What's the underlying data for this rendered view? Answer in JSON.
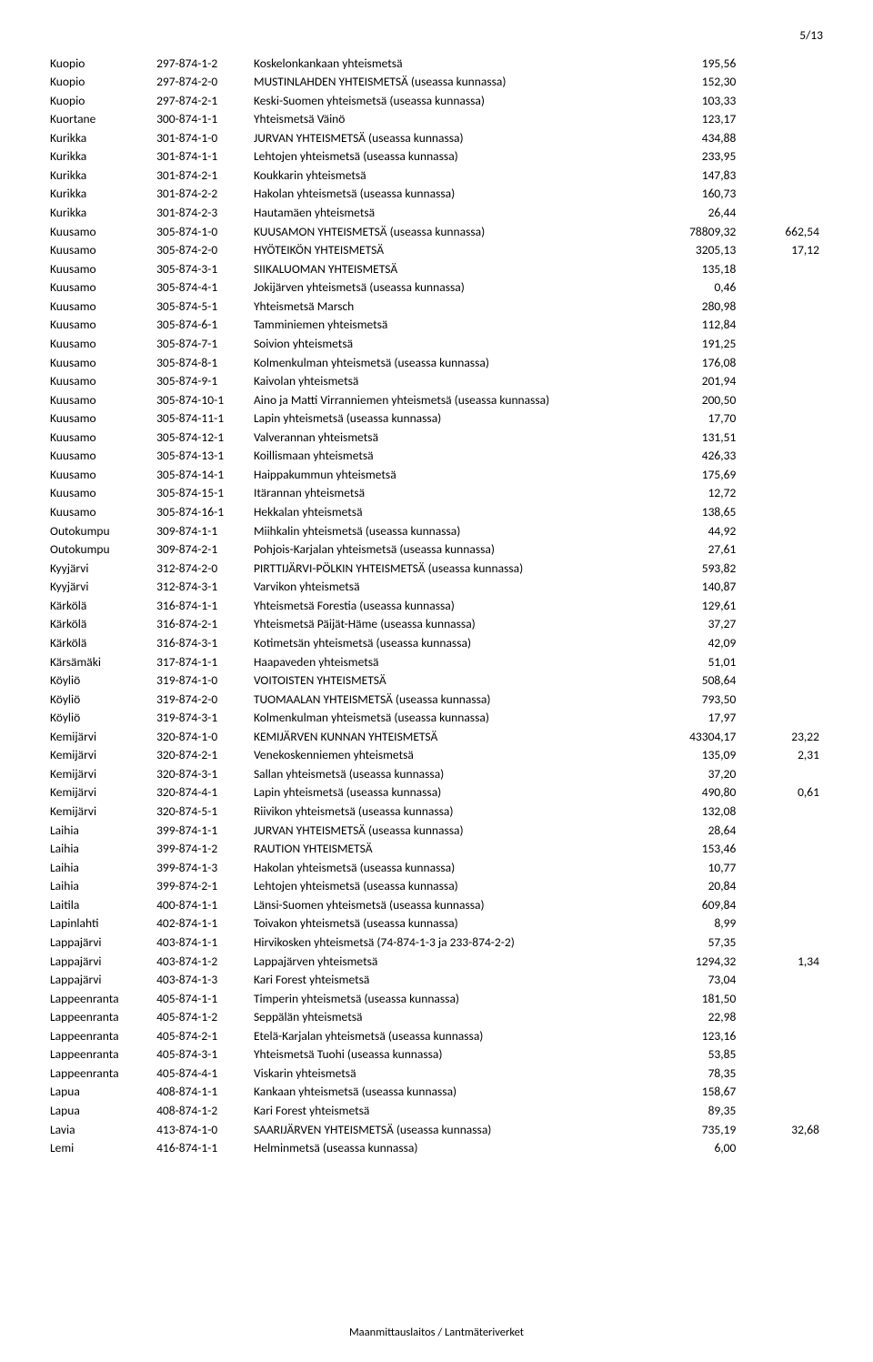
{
  "page_number": "5/13",
  "footer": "Maanmittauslaitos / Lantmäteriverket",
  "rows": [
    [
      "Kuopio",
      "297-874-1-2",
      "Koskelonkankaan yhteismetsä",
      "195,56",
      ""
    ],
    [
      "Kuopio",
      "297-874-2-0",
      "MUSTINLAHDEN YHTEISMETSÄ (useassa kunnassa)",
      "152,30",
      ""
    ],
    [
      "Kuopio",
      "297-874-2-1",
      "Keski-Suomen yhteismetsä (useassa kunnassa)",
      "103,33",
      ""
    ],
    [
      "Kuortane",
      "300-874-1-1",
      "Yhteismetsä Väinö",
      "123,17",
      ""
    ],
    [
      "Kurikka",
      "301-874-1-0",
      "JURVAN YHTEISMETSÄ (useassa kunnassa)",
      "434,88",
      ""
    ],
    [
      "Kurikka",
      "301-874-1-1",
      "Lehtojen yhteismetsä (useassa kunnassa)",
      "233,95",
      ""
    ],
    [
      "Kurikka",
      "301-874-2-1",
      "Koukkarin yhteismetsä",
      "147,83",
      ""
    ],
    [
      "Kurikka",
      "301-874-2-2",
      "Hakolan yhteismetsä (useassa kunnassa)",
      "160,73",
      ""
    ],
    [
      "Kurikka",
      "301-874-2-3",
      "Hautamäen yhteismetsä",
      "26,44",
      ""
    ],
    [
      "Kuusamo",
      "305-874-1-0",
      "KUUSAMON YHTEISMETSÄ (useassa kunnassa)",
      "78809,32",
      "662,54"
    ],
    [
      "Kuusamo",
      "305-874-2-0",
      "HYÖTEIKÖN YHTEISMETSÄ",
      "3205,13",
      "17,12"
    ],
    [
      "Kuusamo",
      "305-874-3-1",
      "SIIKALUOMAN YHTEISMETSÄ",
      "135,18",
      ""
    ],
    [
      "Kuusamo",
      "305-874-4-1",
      "Jokijärven yhteismetsä (useassa kunnassa)",
      "0,46",
      ""
    ],
    [
      "Kuusamo",
      "305-874-5-1",
      "Yhteismetsä Marsch",
      "280,98",
      ""
    ],
    [
      "Kuusamo",
      "305-874-6-1",
      "Tamminiemen yhteismetsä",
      "112,84",
      ""
    ],
    [
      "Kuusamo",
      "305-874-7-1",
      "Soivion yhteismetsä",
      "191,25",
      ""
    ],
    [
      "Kuusamo",
      "305-874-8-1",
      "Kolmenkulman yhteismetsä (useassa kunnassa)",
      "176,08",
      ""
    ],
    [
      "Kuusamo",
      "305-874-9-1",
      "Kaivolan yhteismetsä",
      "201,94",
      ""
    ],
    [
      "Kuusamo",
      "305-874-10-1",
      "Aino ja Matti Virranniemen yhteismetsä (useassa kunnassa)",
      "200,50",
      ""
    ],
    [
      "Kuusamo",
      "305-874-11-1",
      "Lapin yhteismetsä (useassa kunnassa)",
      "17,70",
      ""
    ],
    [
      "Kuusamo",
      "305-874-12-1",
      "Valverannan yhteismetsä",
      "131,51",
      ""
    ],
    [
      "Kuusamo",
      "305-874-13-1",
      "Koillismaan yhteismetsä",
      "426,33",
      ""
    ],
    [
      "Kuusamo",
      "305-874-14-1",
      "Haippakummun yhteismetsä",
      "175,69",
      ""
    ],
    [
      "Kuusamo",
      "305-874-15-1",
      "Itärannan yhteismetsä",
      "12,72",
      ""
    ],
    [
      "Kuusamo",
      "305-874-16-1",
      "Hekkalan yhteismetsä",
      "138,65",
      ""
    ],
    [
      "Outokumpu",
      "309-874-1-1",
      "Miihkalin yhteismetsä (useassa kunnassa)",
      "44,92",
      ""
    ],
    [
      "Outokumpu",
      "309-874-2-1",
      "Pohjois-Karjalan yhteismetsä (useassa kunnassa)",
      "27,61",
      ""
    ],
    [
      "Kyyjärvi",
      "312-874-2-0",
      "PIRTTIJÄRVI-PÖLKIN YHTEISMETSÄ (useassa kunnassa)",
      "593,82",
      ""
    ],
    [
      "Kyyjärvi",
      "312-874-3-1",
      "Varvikon yhteismetsä",
      "140,87",
      ""
    ],
    [
      "Kärkölä",
      "316-874-1-1",
      "Yhteismetsä Forestia (useassa kunnassa)",
      "129,61",
      ""
    ],
    [
      "Kärkölä",
      "316-874-2-1",
      "Yhteismetsä Päijät-Häme (useassa kunnassa)",
      "37,27",
      ""
    ],
    [
      "Kärkölä",
      "316-874-3-1",
      "Kotimetsän yhteismetsä (useassa kunnassa)",
      "42,09",
      ""
    ],
    [
      "Kärsämäki",
      "317-874-1-1",
      "Haapaveden yhteismetsä",
      "51,01",
      ""
    ],
    [
      "Köyliö",
      "319-874-1-0",
      "VOITOISTEN YHTEISMETSÄ",
      "508,64",
      ""
    ],
    [
      "Köyliö",
      "319-874-2-0",
      "TUOMAALAN YHTEISMETSÄ (useassa kunnassa)",
      "793,50",
      ""
    ],
    [
      "Köyliö",
      "319-874-3-1",
      "Kolmenkulman yhteismetsä (useassa kunnassa)",
      "17,97",
      ""
    ],
    [
      "Kemijärvi",
      "320-874-1-0",
      "KEMIJÄRVEN KUNNAN YHTEISMETSÄ",
      "43304,17",
      "23,22"
    ],
    [
      "Kemijärvi",
      "320-874-2-1",
      "Venekoskenniemen yhteismetsä",
      "135,09",
      "2,31"
    ],
    [
      "Kemijärvi",
      "320-874-3-1",
      "Sallan yhteismetsä (useassa kunnassa)",
      "37,20",
      ""
    ],
    [
      "Kemijärvi",
      "320-874-4-1",
      "Lapin yhteismetsä (useassa kunnassa)",
      "490,80",
      "0,61"
    ],
    [
      "Kemijärvi",
      "320-874-5-1",
      "Riivikon yhteismetsä (useassa kunnassa)",
      "132,08",
      ""
    ],
    [
      "Laihia",
      "399-874-1-1",
      "JURVAN YHTEISMETSÄ (useassa kunnassa)",
      "28,64",
      ""
    ],
    [
      "Laihia",
      "399-874-1-2",
      "RAUTION YHTEISMETSÄ",
      "153,46",
      ""
    ],
    [
      "Laihia",
      "399-874-1-3",
      "Hakolan yhteismetsä (useassa kunnassa)",
      "10,77",
      ""
    ],
    [
      "Laihia",
      "399-874-2-1",
      "Lehtojen yhteismetsä (useassa kunnassa)",
      "20,84",
      ""
    ],
    [
      "Laitila",
      "400-874-1-1",
      "Länsi-Suomen yhteismetsä (useassa kunnassa)",
      "609,84",
      ""
    ],
    [
      "Lapinlahti",
      "402-874-1-1",
      "Toivakon yhteismetsä (useassa kunnassa)",
      "8,99",
      ""
    ],
    [
      "Lappajärvi",
      "403-874-1-1",
      "Hirvikosken yhteismetsä (74-874-1-3 ja 233-874-2-2)",
      "57,35",
      ""
    ],
    [
      "Lappajärvi",
      "403-874-1-2",
      "Lappajärven yhteismetsä",
      "1294,32",
      "1,34"
    ],
    [
      "Lappajärvi",
      "403-874-1-3",
      "Kari Forest yhteismetsä",
      "73,04",
      ""
    ],
    [
      "Lappeenranta",
      "405-874-1-1",
      "Timperin yhteismetsä (useassa kunnassa)",
      "181,50",
      ""
    ],
    [
      "Lappeenranta",
      "405-874-1-2",
      "Seppälän yhteismetsä",
      "22,98",
      ""
    ],
    [
      "Lappeenranta",
      "405-874-2-1",
      "Etelä-Karjalan yhteismetsä (useassa kunnassa)",
      "123,16",
      ""
    ],
    [
      "Lappeenranta",
      "405-874-3-1",
      "Yhteismetsä Tuohi (useassa kunnassa)",
      "53,85",
      ""
    ],
    [
      "Lappeenranta",
      "405-874-4-1",
      "Viskarin yhteismetsä",
      "78,35",
      ""
    ],
    [
      "Lapua",
      "408-874-1-1",
      "Kankaan yhteismetsä (useassa kunnassa)",
      "158,67",
      ""
    ],
    [
      "Lapua",
      "408-874-1-2",
      "Kari Forest yhteismetsä",
      "89,35",
      ""
    ],
    [
      "Lavia",
      "413-874-1-0",
      "SAARIJÄRVEN YHTEISMETSÄ (useassa kunnassa)",
      "735,19",
      "32,68"
    ],
    [
      "Lemi",
      "416-874-1-1",
      "Helminmetsä (useassa kunnassa)",
      "6,00",
      ""
    ]
  ]
}
